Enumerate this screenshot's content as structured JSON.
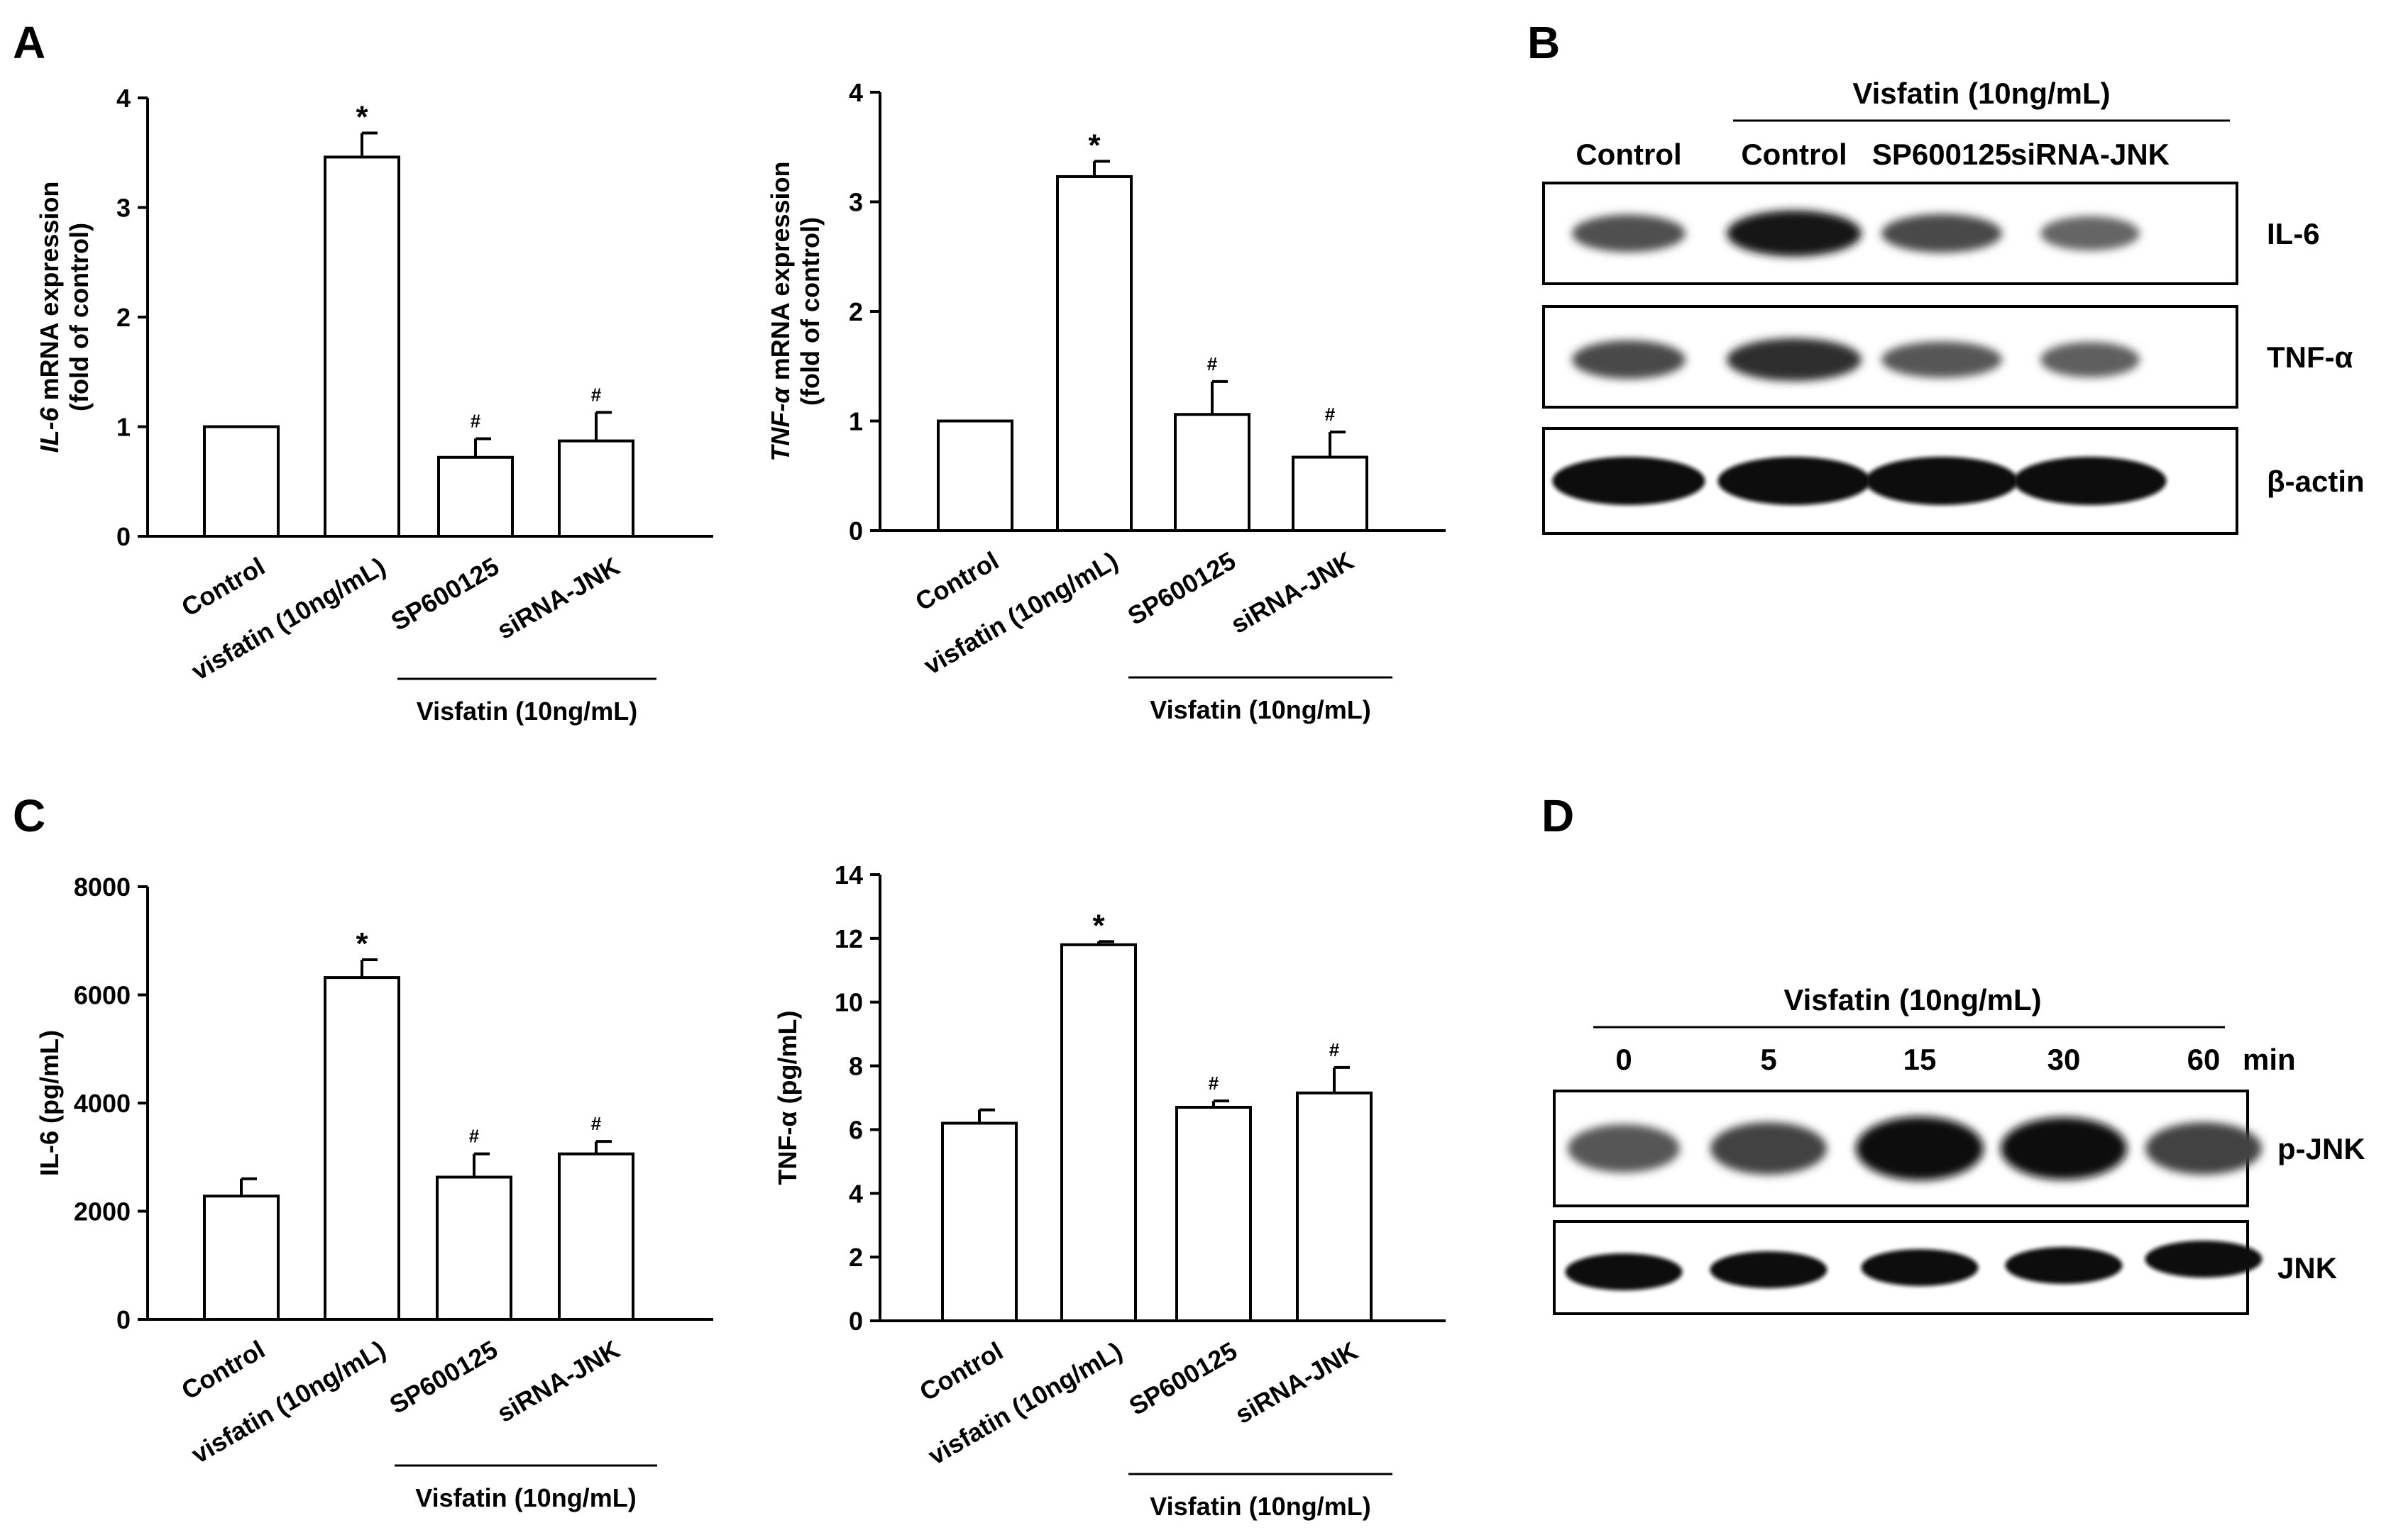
{
  "panels": {
    "A": "A",
    "B": "B",
    "C": "C",
    "D": "D"
  },
  "chart_data": [
    {
      "type": "bar",
      "panel": "A",
      "categories": [
        "Control",
        "visfatin (10ng/mL)",
        "SP600125",
        "siRNA-JNK"
      ],
      "values": [
        1.0,
        3.46,
        0.72,
        0.87
      ],
      "errors": [
        0,
        0.22,
        0.17,
        0.26
      ],
      "markers": [
        "",
        "*",
        "#",
        "#"
      ],
      "ylabel_italic": "IL-6",
      "ylabel": " mRNA expression",
      "ylabel2": "(fold of control)",
      "ylim": [
        0,
        4
      ],
      "yticks": [
        0,
        1,
        2,
        3,
        4
      ],
      "group_label": "Visfatin (10ng/mL)"
    },
    {
      "type": "bar",
      "panel": "A",
      "categories": [
        "Control",
        "visfatin (10ng/mL)",
        "SP600125",
        "siRNA-JNK"
      ],
      "values": [
        1.0,
        3.23,
        1.06,
        0.67
      ],
      "errors": [
        0,
        0.14,
        0.3,
        0.23
      ],
      "markers": [
        "",
        "*",
        "#",
        "#"
      ],
      "ylabel_italic": "TNF-α",
      "ylabel": " mRNA expression",
      "ylabel2": "(fold of control)",
      "ylim": [
        0,
        4
      ],
      "yticks": [
        0,
        1,
        2,
        3,
        4
      ],
      "group_label": "Visfatin (10ng/mL)"
    },
    {
      "type": "bar",
      "panel": "C",
      "categories": [
        "Control",
        "visfatin (10ng/mL)",
        "SP600125",
        "siRNA-JNK"
      ],
      "values": [
        2280,
        6320,
        2630,
        3060
      ],
      "errors": [
        320,
        330,
        430,
        230
      ],
      "markers": [
        "",
        "*",
        "#",
        "#"
      ],
      "ylabel_italic": "",
      "ylabel": "IL-6 (pg/mL)",
      "ylabel2": "",
      "ylim": [
        0,
        8000
      ],
      "yticks": [
        0,
        2000,
        4000,
        6000,
        8000
      ],
      "group_label": "Visfatin (10ng/mL)"
    },
    {
      "type": "bar",
      "panel": "C",
      "categories": [
        "Control",
        "visfatin (10ng/mL)",
        "SP600125",
        "siRNA-JNK"
      ],
      "values": [
        6.2,
        11.8,
        6.7,
        7.15
      ],
      "errors": [
        0.42,
        0.1,
        0.2,
        0.8
      ],
      "markers": [
        "",
        "*",
        "#",
        "#"
      ],
      "ylabel_italic": "",
      "ylabel": "TNF-α (pg/mL)",
      "ylabel2": "",
      "ylim": [
        0,
        14
      ],
      "yticks": [
        0,
        2,
        4,
        6,
        8,
        10,
        12,
        14
      ],
      "group_label": "Visfatin (10ng/mL)"
    }
  ],
  "blotB": {
    "treatment": "Visfatin (10ng/mL)",
    "lanes": [
      "Control",
      "Control",
      "SP600125",
      "siRNA-JNK"
    ],
    "rows": [
      {
        "label": "IL-6",
        "intensity": [
          0.5,
          0.9,
          0.55,
          0.35
        ]
      },
      {
        "label": "TNF-α",
        "intensity": [
          0.55,
          0.75,
          0.45,
          0.4
        ]
      },
      {
        "label": "β-actin",
        "intensity": [
          1.0,
          1.0,
          1.0,
          1.0
        ]
      }
    ]
  },
  "blotD": {
    "treatment": "Visfatin (10ng/mL)",
    "times": [
      "0",
      "5",
      "15",
      "30",
      "60"
    ],
    "unit": "min",
    "rows": [
      {
        "label": "p-JNK",
        "intensity": [
          0.45,
          0.6,
          1.0,
          0.95,
          0.6
        ]
      },
      {
        "label": "JNK",
        "intensity": [
          1.0,
          0.95,
          1.0,
          1.0,
          1.0
        ]
      }
    ]
  }
}
